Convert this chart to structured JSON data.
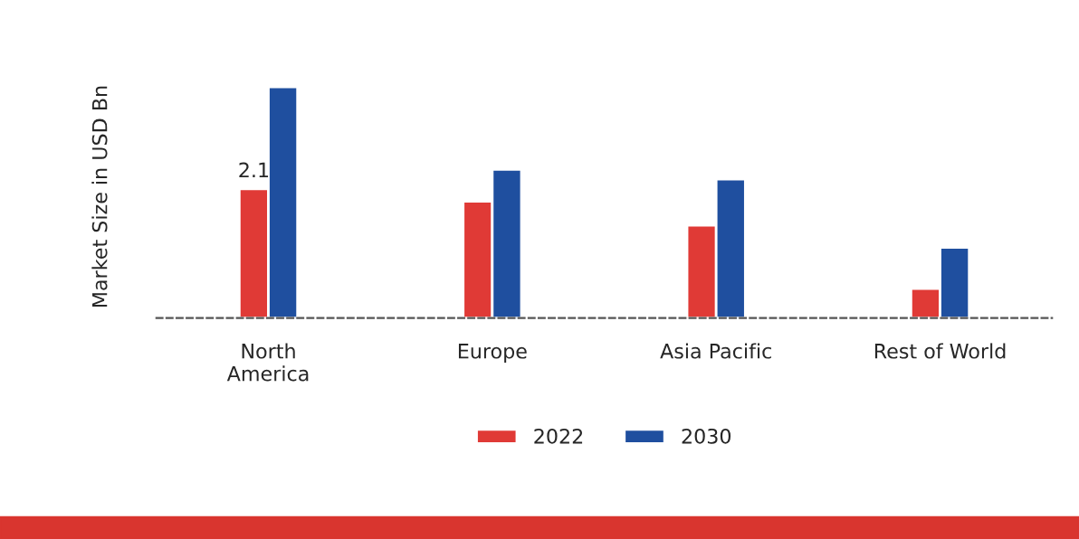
{
  "chart_data": {
    "type": "bar",
    "ylabel": "Market Size in USD Bn",
    "categories": [
      "North\nAmerica",
      "Europe",
      "Asia Pacific",
      "Rest of World"
    ],
    "series": [
      {
        "name": "2022",
        "color": "#e03a36",
        "values": [
          2.1,
          1.9,
          1.51,
          0.48
        ],
        "value_labels": [
          "2.1",
          null,
          null,
          null
        ]
      },
      {
        "name": "2030",
        "color": "#1f4f9f",
        "values": [
          3.76,
          2.42,
          2.26,
          1.15
        ]
      }
    ],
    "legend": "bottom",
    "grid": false
  }
}
